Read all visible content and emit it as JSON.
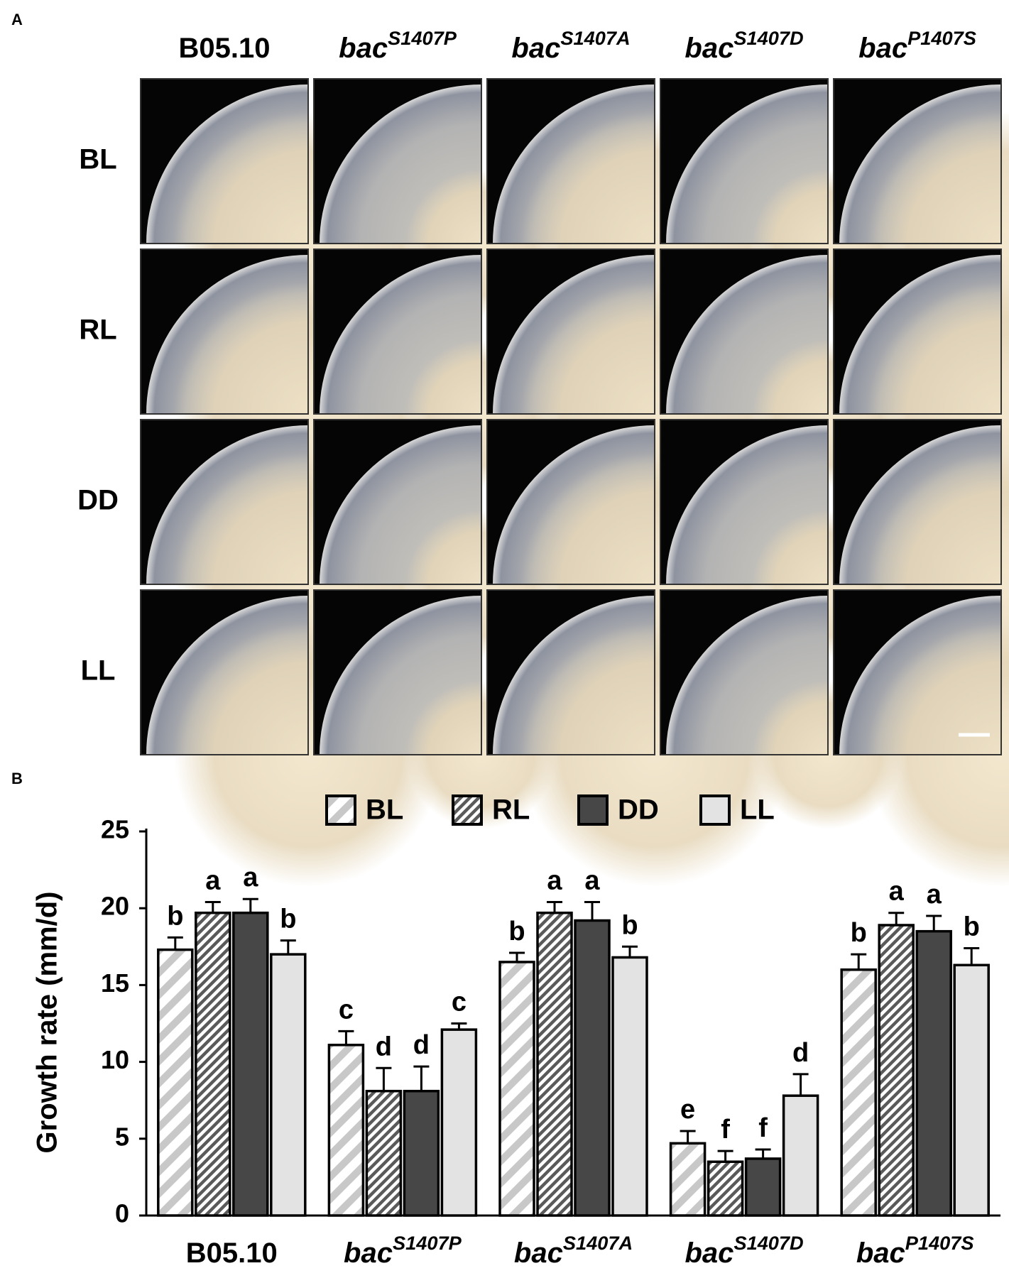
{
  "panel_a": {
    "label": "A",
    "columns": [
      {
        "text": "B05.10"
      },
      {
        "text": "bac",
        "sup": "S1407P"
      },
      {
        "text": "bac",
        "sup": "S1407A"
      },
      {
        "text": "bac",
        "sup": "S1407D"
      },
      {
        "text": "bac",
        "sup": "P1407S"
      }
    ],
    "rows": [
      "BL",
      "RL",
      "DD",
      "LL"
    ]
  },
  "panel_b_label": "B",
  "chart_data": {
    "type": "bar",
    "y_label": "Growth rate (mm/d)",
    "categories": [
      {
        "text": "B05.10"
      },
      {
        "text": "bac",
        "sup": "S1407P"
      },
      {
        "text": "bac",
        "sup": "S1407A"
      },
      {
        "text": "bac",
        "sup": "S1407D"
      },
      {
        "text": "bac",
        "sup": "P1407S"
      }
    ],
    "series": [
      {
        "name": "BL",
        "color": "#c8c8c8",
        "fill": "hatch",
        "values": [
          17.3,
          11.1,
          16.5,
          4.7,
          16.0
        ],
        "errors": [
          0.8,
          0.9,
          0.6,
          0.8,
          1.0
        ],
        "letters": [
          "b",
          "c",
          "b",
          "e",
          "b"
        ]
      },
      {
        "name": "RL",
        "color": "#5a5a5a",
        "fill": "hatch",
        "values": [
          19.7,
          8.1,
          19.7,
          3.5,
          18.9
        ],
        "errors": [
          0.7,
          1.5,
          0.7,
          0.7,
          0.8
        ],
        "letters": [
          "a",
          "d",
          "a",
          "f",
          "a"
        ]
      },
      {
        "name": "DD",
        "color": "#474747",
        "fill": "solid",
        "values": [
          19.7,
          8.1,
          19.2,
          3.7,
          18.5
        ],
        "errors": [
          0.9,
          1.6,
          1.2,
          0.6,
          1.0
        ],
        "letters": [
          "a",
          "d",
          "a",
          "f",
          "a"
        ]
      },
      {
        "name": "LL",
        "color": "#e3e3e3",
        "fill": "solid",
        "values": [
          17.0,
          12.1,
          16.8,
          7.8,
          16.3
        ],
        "errors": [
          0.9,
          0.4,
          0.7,
          1.4,
          1.1
        ],
        "letters": [
          "b",
          "c",
          "b",
          "d",
          "b"
        ]
      }
    ],
    "ylim": [
      0,
      25
    ],
    "yticks": [
      0,
      5,
      10,
      15,
      20,
      25
    ],
    "grid": false
  }
}
